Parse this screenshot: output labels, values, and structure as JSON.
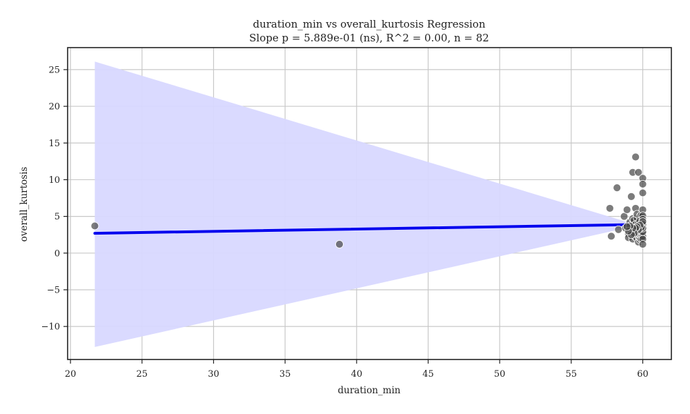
{
  "chart_data": {
    "type": "scatter",
    "title": "duration_min vs overall_kurtosis Regression",
    "subtitle": "Slope p = 5.889e-01 (ns), R^2 = 0.00, n = 82",
    "xlabel": "duration_min",
    "ylabel": "overall_kurtosis",
    "xlim": [
      19.8,
      62.0
    ],
    "ylim": [
      -14.5,
      28.0
    ],
    "xticks": [
      20,
      25,
      30,
      35,
      40,
      45,
      50,
      55,
      60
    ],
    "yticks": [
      -10,
      -5,
      0,
      5,
      10,
      15,
      20,
      25
    ],
    "xtick_labels": [
      "20",
      "25",
      "30",
      "35",
      "40",
      "45",
      "50",
      "55",
      "60"
    ],
    "ytick_labels": [
      "−10",
      "−5",
      "0",
      "5",
      "10",
      "15",
      "20",
      "25"
    ],
    "grid": true,
    "colors": {
      "points": "#444444",
      "regression_line": "#0000ee",
      "confidence_band": "#d8d8ff"
    },
    "regression": {
      "x": [
        21.7,
        60.0
      ],
      "y": [
        2.7,
        3.9
      ]
    },
    "confidence_band": {
      "x": [
        21.7,
        58.8,
        60.0
      ],
      "upper": [
        26.1,
        4.3,
        4.6
      ],
      "lower": [
        -12.8,
        3.4,
        3.2
      ]
    },
    "points": [
      [
        21.7,
        3.7
      ],
      [
        38.8,
        1.2
      ],
      [
        57.7,
        6.1
      ],
      [
        57.8,
        2.3
      ],
      [
        58.2,
        8.9
      ],
      [
        58.3,
        3.2
      ],
      [
        58.7,
        5.0
      ],
      [
        58.8,
        3.4
      ],
      [
        58.9,
        5.9
      ],
      [
        59.0,
        2.6
      ],
      [
        59.0,
        2.1
      ],
      [
        59.1,
        3.1
      ],
      [
        59.1,
        4.2
      ],
      [
        59.2,
        7.7
      ],
      [
        59.2,
        2.8
      ],
      [
        59.2,
        3.6
      ],
      [
        59.3,
        4.7
      ],
      [
        59.3,
        11.0
      ],
      [
        59.3,
        1.9
      ],
      [
        59.3,
        3.0
      ],
      [
        59.4,
        2.4
      ],
      [
        59.4,
        3.8
      ],
      [
        59.4,
        4.5
      ],
      [
        59.4,
        3.3
      ],
      [
        59.5,
        13.1
      ],
      [
        59.5,
        6.1
      ],
      [
        59.5,
        2.2
      ],
      [
        59.5,
        2.9
      ],
      [
        59.5,
        3.9
      ],
      [
        59.6,
        4.8
      ],
      [
        59.6,
        2.0
      ],
      [
        59.6,
        3.1
      ],
      [
        59.6,
        5.3
      ],
      [
        59.6,
        2.6
      ],
      [
        59.7,
        11.0
      ],
      [
        59.7,
        1.5
      ],
      [
        59.7,
        3.5
      ],
      [
        59.7,
        4.1
      ],
      [
        59.7,
        2.3
      ],
      [
        59.7,
        2.8
      ],
      [
        59.8,
        5.0
      ],
      [
        59.8,
        1.8
      ],
      [
        59.8,
        3.3
      ],
      [
        59.8,
        4.4
      ],
      [
        59.8,
        2.1
      ],
      [
        59.8,
        3.0
      ],
      [
        59.8,
        2.5
      ],
      [
        59.9,
        5.2
      ],
      [
        59.9,
        3.7
      ],
      [
        59.9,
        2.4
      ],
      [
        59.9,
        4.0
      ],
      [
        59.9,
        3.1
      ],
      [
        59.9,
        1.9
      ],
      [
        59.9,
        2.8
      ],
      [
        60.0,
        10.2
      ],
      [
        60.0,
        9.4
      ],
      [
        60.0,
        8.2
      ],
      [
        60.0,
        5.9
      ],
      [
        60.0,
        5.1
      ],
      [
        60.0,
        4.6
      ],
      [
        60.0,
        4.0
      ],
      [
        60.0,
        3.6
      ],
      [
        60.0,
        3.2
      ],
      [
        60.0,
        2.7
      ],
      [
        60.0,
        2.3
      ],
      [
        60.0,
        1.9
      ],
      [
        60.0,
        1.2
      ],
      [
        60.0,
        3.9
      ],
      [
        60.0,
        2.9
      ],
      [
        60.0,
        3.4
      ],
      [
        60.0,
        4.3
      ],
      [
        59.9,
        3.5
      ],
      [
        59.8,
        3.8
      ],
      [
        59.7,
        3.2
      ],
      [
        59.6,
        3.6
      ],
      [
        59.5,
        3.4
      ],
      [
        59.4,
        2.7
      ],
      [
        59.3,
        3.4
      ],
      [
        59.2,
        2.5
      ],
      [
        59.1,
        3.7
      ],
      [
        59.0,
        3.0
      ],
      [
        58.9,
        3.6
      ]
    ]
  }
}
